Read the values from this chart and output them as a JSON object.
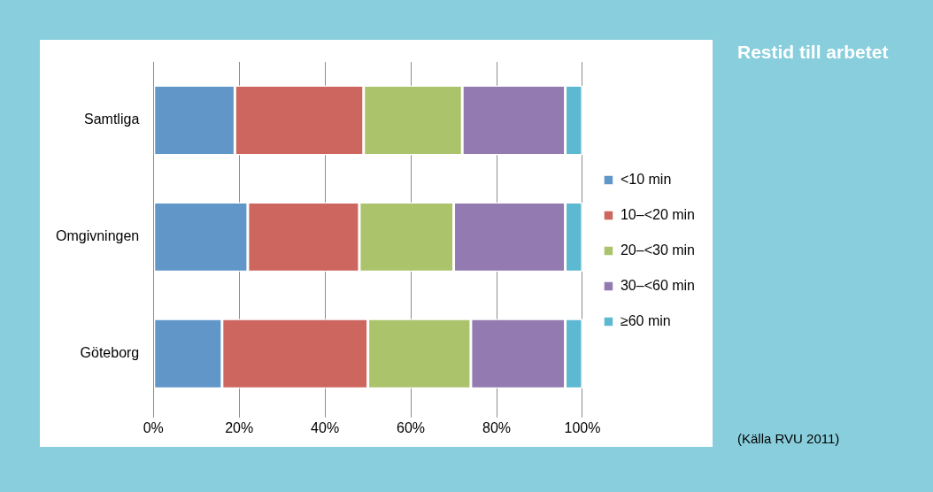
{
  "chart_data": {
    "type": "bar",
    "orientation": "horizontal",
    "stacked": true,
    "title": "Restid till arbetet",
    "categories": [
      "Samtliga",
      "Omgivningen",
      "Göteborg"
    ],
    "series": [
      {
        "name": "<10 min",
        "color": "#6196c9",
        "values": [
          19,
          22,
          16
        ]
      },
      {
        "name": "10–<20 min",
        "color": "#cd665f",
        "values": [
          30,
          26,
          34
        ]
      },
      {
        "name": "20–<30 min",
        "color": "#abc46c",
        "values": [
          23,
          22,
          24
        ]
      },
      {
        "name": "30–<60 min",
        "color": "#937ab0",
        "values": [
          24,
          26,
          22
        ]
      },
      {
        "name": "≥60 min",
        "color": "#5db8d1",
        "values": [
          4,
          4,
          4
        ]
      }
    ],
    "xlim": [
      0,
      100
    ],
    "xticks": [
      {
        "value": 0,
        "label": "0%"
      },
      {
        "value": 20,
        "label": "20%"
      },
      {
        "value": 40,
        "label": "40%"
      },
      {
        "value": 60,
        "label": "60%"
      },
      {
        "value": 80,
        "label": "80%"
      },
      {
        "value": 100,
        "label": "100%"
      }
    ],
    "grid": "x",
    "legend": "right",
    "annotations": [
      "(Källa RVU 2011)"
    ]
  }
}
